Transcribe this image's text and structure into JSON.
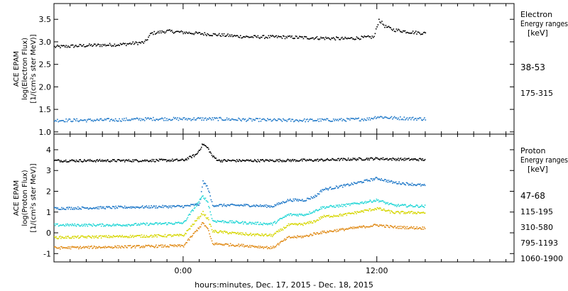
{
  "colors": {
    "black": "#000000",
    "blue": "#1f78c8",
    "cyan": "#22d6d6",
    "yellow": "#d6d600",
    "orange": "#e08a16"
  },
  "xaxis": {
    "title": "hours:minutes, Dec. 17, 2015 - Dec. 18, 2015",
    "ticks": [
      "0:00",
      "12:00"
    ]
  },
  "electron_panel": {
    "ylabel_lines": [
      "ACE EPAM",
      "log(Electron Flux)",
      "[1/(cm²s ster MeV)]"
    ],
    "legend_title": [
      "Electron",
      "Energy ranges",
      "[keV]"
    ]
  },
  "proton_panel": {
    "ylabel_lines": [
      "ACE EPAM",
      "log(Proton Flux)",
      "[1/(cm²s ster MeV)]"
    ],
    "legend_title": [
      "Proton",
      "Energy ranges",
      "[keV]"
    ]
  },
  "chart_data": [
    {
      "type": "scatter",
      "panel": "electron",
      "x_unit": "hours since Dec. 17, 2015 00:00",
      "xlim": [
        -8,
        20.5
      ],
      "ylim": [
        0.95,
        3.85
      ],
      "yticks": [
        1.0,
        1.5,
        2.0,
        2.5,
        3.0,
        3.5
      ],
      "ytick_labels": [
        "1.0",
        "1.5",
        "2.0",
        "2.5",
        "3.0",
        "3.5"
      ],
      "series": [
        {
          "name": "38-53",
          "color": "#000000",
          "x": [
            -8,
            -6,
            -4,
            -2.4,
            -2,
            -1,
            0,
            2,
            4,
            6,
            8,
            10,
            11.8,
            12.1,
            12.5,
            13,
            14,
            15
          ],
          "y": [
            2.9,
            2.93,
            2.95,
            3.0,
            3.2,
            3.25,
            3.22,
            3.17,
            3.12,
            3.12,
            3.1,
            3.08,
            3.12,
            3.5,
            3.35,
            3.28,
            3.23,
            3.2
          ]
        },
        {
          "name": "175-315",
          "color": "#1f78c8",
          "x": [
            -8,
            -6,
            -4,
            -2,
            0,
            2,
            4,
            6,
            8,
            10,
            11.5,
            12,
            13,
            15
          ],
          "y": [
            1.27,
            1.27,
            1.28,
            1.3,
            1.3,
            1.3,
            1.28,
            1.27,
            1.27,
            1.28,
            1.3,
            1.35,
            1.32,
            1.3
          ]
        }
      ]
    },
    {
      "type": "scatter",
      "panel": "proton",
      "x_unit": "hours since Dec. 17, 2015 00:00",
      "xlim": [
        -8,
        20.5
      ],
      "ylim": [
        -1.4,
        4.75
      ],
      "yticks": [
        -1,
        0,
        1,
        2,
        3,
        4
      ],
      "ytick_labels": [
        "-1",
        "0",
        "1",
        "2",
        "3",
        "4"
      ],
      "series": [
        {
          "name": "47-68",
          "color": "#000000",
          "x": [
            -8,
            -4,
            0,
            0.8,
            1.2,
            1.5,
            1.8,
            2.2,
            4,
            8,
            12,
            13,
            15
          ],
          "y": [
            3.5,
            3.5,
            3.52,
            3.8,
            4.3,
            4.1,
            3.7,
            3.5,
            3.5,
            3.52,
            3.6,
            3.57,
            3.55
          ]
        },
        {
          "name": "115-195",
          "color": "#1f78c8",
          "x": [
            -8,
            -4,
            0,
            1.0,
            1.2,
            1.5,
            1.8,
            4,
            5.5,
            6.5,
            7.5,
            8.2,
            8.6,
            10,
            12,
            13,
            15
          ],
          "y": [
            1.2,
            1.25,
            1.3,
            1.4,
            2.5,
            2.2,
            1.35,
            1.35,
            1.3,
            1.6,
            1.6,
            1.8,
            2.1,
            2.3,
            2.65,
            2.45,
            2.3
          ]
        },
        {
          "name": "310-580",
          "color": "#22d6d6",
          "x": [
            -8,
            -4,
            0,
            1.2,
            1.5,
            1.8,
            4,
            5.5,
            6.5,
            7.5,
            8.2,
            8.6,
            10,
            12,
            13,
            15
          ],
          "y": [
            0.4,
            0.4,
            0.5,
            1.8,
            1.5,
            0.6,
            0.5,
            0.45,
            0.9,
            0.9,
            1.1,
            1.25,
            1.35,
            1.6,
            1.35,
            1.3
          ]
        },
        {
          "name": "795-1193",
          "color": "#d6d600",
          "x": [
            -8,
            -4,
            0,
            1.2,
            1.5,
            1.8,
            4,
            5.5,
            6.5,
            7.5,
            8.2,
            8.6,
            10,
            12,
            13,
            15
          ],
          "y": [
            -0.2,
            -0.15,
            -0.1,
            1.0,
            0.7,
            0.1,
            -0.05,
            -0.1,
            0.4,
            0.45,
            0.6,
            0.8,
            0.9,
            1.2,
            1.0,
            1.0
          ]
        },
        {
          "name": "1060-1900",
          "color": "#e08a16",
          "x": [
            -8,
            -4,
            0,
            1.2,
            1.5,
            1.8,
            4,
            5.5,
            6.5,
            7.5,
            8.2,
            8.6,
            10,
            12,
            13,
            15
          ],
          "y": [
            -0.7,
            -0.65,
            -0.6,
            0.5,
            0.2,
            -0.5,
            -0.6,
            -0.7,
            -0.2,
            -0.15,
            0.0,
            0.05,
            0.2,
            0.4,
            0.3,
            0.25
          ]
        }
      ]
    }
  ]
}
